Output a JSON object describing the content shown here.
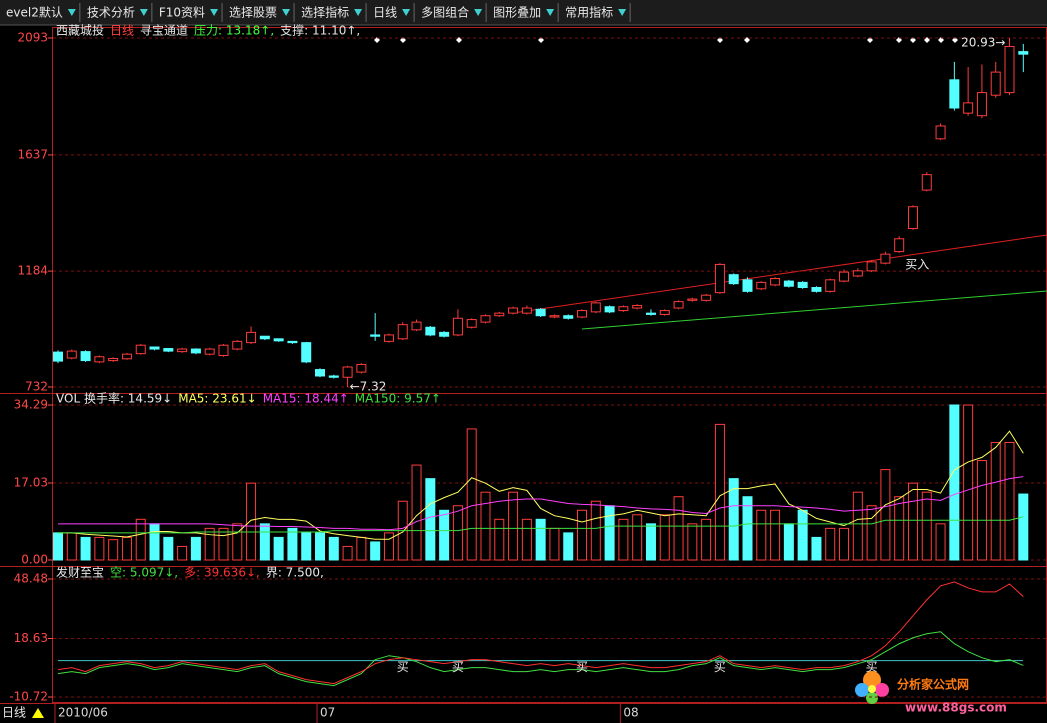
{
  "toolbar": [
    "evel2默认",
    "技术分析",
    "F10资料",
    "选择股票",
    "选择指标",
    "日线",
    "多图组合",
    "图形叠加",
    "常用指标"
  ],
  "chart_data": [
    {
      "type": "candlestick",
      "title": "西藏城投",
      "period": "日线",
      "indicator": "寻宝通道",
      "legend": [
        {
          "name": "压力: 13.18↑,",
          "color": "#40ff40"
        },
        {
          "name": "支撑: 11.10↑,",
          "color": "#e0e0e0"
        }
      ],
      "categories": [
        "2010/06",
        null,
        null,
        null,
        null,
        null,
        null,
        null,
        null,
        null,
        null,
        null,
        null,
        null,
        null,
        null,
        null,
        null,
        null,
        "07",
        null,
        null,
        null,
        null,
        null,
        null,
        null,
        null,
        null,
        null,
        null,
        null,
        null,
        null,
        null,
        null,
        null,
        null,
        null,
        null,
        null,
        "08",
        null,
        null,
        null,
        null,
        null,
        null,
        null,
        null,
        null,
        null,
        null,
        null,
        null,
        null,
        null,
        null,
        null,
        null,
        null,
        null,
        null,
        null,
        null,
        null,
        null,
        null,
        null,
        null,
        null
      ],
      "open": [
        868,
        845,
        870,
        830,
        835,
        842,
        862,
        888,
        882,
        870,
        880,
        860,
        855,
        880,
        905,
        930,
        920,
        910,
        905,
        800,
        775,
        770,
        790,
        935,
        910,
        920,
        955,
        965,
        945,
        935,
        965,
        985,
        1010,
        1020,
        1020,
        1035,
        1005,
        1010,
        1005,
        1025,
        1045,
        1030,
        1040,
        1020,
        1015,
        1040,
        1070,
        1070,
        1100,
        1170,
        1150,
        1115,
        1130,
        1145,
        1140,
        1120,
        1105,
        1145,
        1165,
        1185,
        1215,
        1260,
        1350,
        1500,
        1700,
        1930,
        1800,
        1790,
        1870,
        1880,
        2040
      ],
      "high": [
        875,
        878,
        875,
        855,
        848,
        865,
        900,
        890,
        880,
        885,
        883,
        885,
        900,
        915,
        968,
        925,
        918,
        910,
        908,
        805,
        780,
        815,
        825,
        1020,
        940,
        985,
        995,
        970,
        950,
        1035,
        1000,
        1015,
        1025,
        1045,
        1050,
        1040,
        1015,
        1015,
        1035,
        1065,
        1050,
        1050,
        1055,
        1035,
        1035,
        1070,
        1080,
        1095,
        1215,
        1175,
        1160,
        1145,
        1160,
        1150,
        1145,
        1125,
        1155,
        1190,
        1195,
        1225,
        1260,
        1320,
        1440,
        1570,
        1760,
        2000,
        1980,
        1990,
        2000,
        2093,
        2070
      ],
      "low": [
        825,
        840,
        830,
        825,
        830,
        838,
        858,
        875,
        868,
        865,
        860,
        855,
        850,
        875,
        900,
        915,
        908,
        900,
        825,
        770,
        765,
        732,
        785,
        912,
        905,
        915,
        950,
        930,
        925,
        930,
        960,
        980,
        1005,
        1015,
        1015,
        1005,
        1000,
        995,
        1000,
        1020,
        1020,
        1025,
        1035,
        1010,
        1010,
        1035,
        1065,
        1065,
        1095,
        1130,
        1100,
        1110,
        1125,
        1120,
        1115,
        1100,
        1100,
        1140,
        1160,
        1180,
        1210,
        1255,
        1345,
        1495,
        1695,
        1810,
        1790,
        1780,
        1860,
        1870,
        1960
      ],
      "close": [
        833,
        872,
        835,
        850,
        843,
        860,
        895,
        880,
        872,
        880,
        865,
        880,
        895,
        910,
        945,
        920,
        912,
        905,
        830,
        775,
        770,
        810,
        820,
        930,
        935,
        975,
        985,
        935,
        930,
        1000,
        995,
        1010,
        1020,
        1040,
        1040,
        1010,
        1010,
        1000,
        1030,
        1060,
        1025,
        1045,
        1050,
        1015,
        1030,
        1065,
        1075,
        1090,
        1210,
        1135,
        1105,
        1140,
        1155,
        1125,
        1120,
        1105,
        1150,
        1180,
        1185,
        1220,
        1250,
        1310,
        1435,
        1560,
        1750,
        1820,
        1840,
        1880,
        1960,
        2060,
        2030
      ],
      "ylim": [
        732,
        2093
      ],
      "yticks": [
        732,
        1184,
        1637,
        2093
      ],
      "grid": true,
      "up_color": "#ff3c3c",
      "down_color": "#54ffff",
      "annotations": [
        {
          "index": 21,
          "text": "←7.32"
        },
        {
          "index": 69,
          "text": "20.93→"
        },
        {
          "index": 61,
          "text": "买入"
        }
      ]
    },
    {
      "type": "bar",
      "title": "VOL 换手率: 14.59↓",
      "values": [
        6,
        6,
        5,
        5,
        4.5,
        5,
        9,
        8,
        5,
        3,
        5,
        7,
        7,
        8,
        17,
        8,
        5,
        7,
        6,
        6,
        5,
        3,
        5,
        4,
        6,
        13,
        21,
        18,
        11,
        12,
        29,
        15,
        9,
        15,
        9,
        9,
        7,
        6,
        11,
        13,
        12,
        9,
        10,
        8,
        10,
        14,
        8,
        9,
        30,
        18,
        14,
        11,
        11,
        8,
        11,
        5,
        7,
        7,
        15,
        12,
        20,
        14,
        17,
        15,
        8,
        34.29,
        34.29,
        22,
        26,
        26,
        14.59
      ],
      "series": [
        {
          "name": "MA5: 23.61↓",
          "color": "#ffff60",
          "values": [
            6,
            6,
            5.7,
            5.5,
            5.3,
            5.1,
            5.7,
            6.3,
            6.3,
            6,
            6,
            5.6,
            5.4,
            6,
            8.8,
            9.4,
            9,
            9,
            8.6,
            6.4,
            5.8,
            5.4,
            5,
            4.6,
            4.6,
            6.2,
            9.8,
            12.4,
            13.8,
            15,
            18.2,
            17,
            15.2,
            16,
            15.4,
            11.4,
            9.8,
            9.2,
            8.4,
            9.2,
            9.8,
            10.2,
            11,
            10.4,
            9.8,
            10.2,
            10,
            9.8,
            14.2,
            15.8,
            15.8,
            16.4,
            16.8,
            12.4,
            11,
            9.2,
            8.4,
            7.6,
            9,
            9.2,
            12.2,
            13.6,
            15.6,
            15.6,
            14.8,
            19.9,
            21.7,
            22.7,
            24.9,
            28.5,
            23.61
          ]
        },
        {
          "name": "MA15: 18.44↑",
          "color": "#ff40ff",
          "values": [
            8,
            8,
            8,
            8,
            8,
            8,
            8,
            8,
            8,
            8,
            8,
            8,
            7.8,
            7.6,
            7.5,
            7.5,
            7.4,
            7.4,
            7.3,
            7.2,
            7,
            7,
            6.8,
            6.8,
            6.7,
            7,
            8.5,
            9.5,
            10,
            10.8,
            12,
            12.5,
            13,
            13.3,
            13.5,
            13.5,
            13,
            12.5,
            12.3,
            12.2,
            12,
            11.8,
            11.5,
            11.3,
            11.2,
            11,
            10.5,
            10.3,
            11.5,
            12,
            12,
            12,
            12,
            11.8,
            11.7,
            11.5,
            11.2,
            10.8,
            11,
            11.2,
            11.8,
            12.5,
            13,
            13.5,
            13.2,
            14.5,
            15.5,
            16.5,
            17.2,
            18,
            18.44
          ]
        },
        {
          "name": "MA150: 9.57↑",
          "color": "#40e040",
          "values": [
            6,
            6,
            6,
            6,
            6,
            6,
            6,
            6,
            6,
            6,
            6.2,
            6.2,
            6.2,
            6.2,
            6.2,
            6.2,
            6.2,
            6.2,
            6.2,
            6.2,
            6.5,
            6.5,
            6.5,
            6.5,
            6.5,
            6.5,
            6.5,
            6.5,
            6.5,
            6.5,
            7,
            7,
            7,
            7,
            7,
            7,
            7,
            7,
            7,
            7,
            7.5,
            7.5,
            7.5,
            7.5,
            7.5,
            7.5,
            7.5,
            7.5,
            7.5,
            7.5,
            8,
            8,
            8,
            8,
            8,
            8,
            8,
            8,
            8,
            8,
            8.8,
            8.8,
            8.8,
            8.8,
            8.8,
            8.8,
            8.8,
            8.8,
            8.8,
            8.8,
            9.57
          ]
        }
      ],
      "ylim": [
        0,
        34.29
      ],
      "yticks": [
        {
          "value": 0,
          "label": "0.00"
        },
        {
          "value": 17.03,
          "label": "17.03"
        },
        {
          "value": 34.29,
          "label": "34.29"
        }
      ],
      "grid": true
    },
    {
      "type": "line",
      "title": "发财至宝",
      "series": [
        {
          "name": "空: 5.097↓,",
          "color": "#40e040",
          "values": [
            1,
            2,
            1,
            4,
            5,
            6,
            5,
            3,
            4,
            6,
            5,
            4,
            3,
            2,
            4,
            5,
            1,
            -1,
            -3,
            -4,
            -5,
            -2,
            1,
            8,
            10,
            9,
            7,
            4,
            2,
            3,
            4,
            4,
            3,
            2,
            2,
            3,
            2,
            3,
            3,
            2,
            3,
            4,
            3,
            2,
            2,
            3,
            5,
            6,
            9,
            5,
            4,
            3,
            4,
            3,
            2,
            3,
            3,
            4,
            6,
            8,
            12,
            16,
            19,
            21,
            22,
            16,
            12,
            9,
            7,
            8,
            5.097
          ]
        },
        {
          "name": "多: 39.636↓,",
          "color": "#ff3030",
          "values": [
            3,
            4,
            2,
            5,
            6,
            7,
            6,
            4,
            5,
            7,
            6,
            5,
            4,
            3,
            5,
            6,
            2,
            0,
            -2,
            -3,
            -4,
            -1,
            2,
            6,
            8,
            9,
            8,
            7,
            6,
            7,
            8,
            8,
            7,
            6,
            5,
            6,
            5,
            6,
            5,
            4,
            5,
            6,
            5,
            4,
            4,
            5,
            6,
            7,
            10,
            6,
            5,
            4,
            5,
            4,
            3,
            4,
            4,
            5,
            7,
            10,
            15,
            22,
            30,
            38,
            45,
            47,
            44,
            42,
            42,
            46,
            39.636
          ]
        }
      ],
      "threshold": {
        "name": "界: 7.500,",
        "value": 7.5,
        "color": "#40c8c8"
      },
      "buy_signals": [
        {
          "index": 25,
          "label": "买"
        },
        {
          "index": 29,
          "label": "买"
        },
        {
          "index": 38,
          "label": "买"
        },
        {
          "index": 48,
          "label": "买"
        },
        {
          "index": 59,
          "label": "买"
        }
      ],
      "ylim": [
        -10.72,
        48.48
      ],
      "yticks": [
        -10.72,
        18.63,
        48.48
      ],
      "grid": true
    }
  ],
  "footer": {
    "period": "日线"
  },
  "watermark": [
    "分析家公式网",
    "www.88gs.com"
  ]
}
